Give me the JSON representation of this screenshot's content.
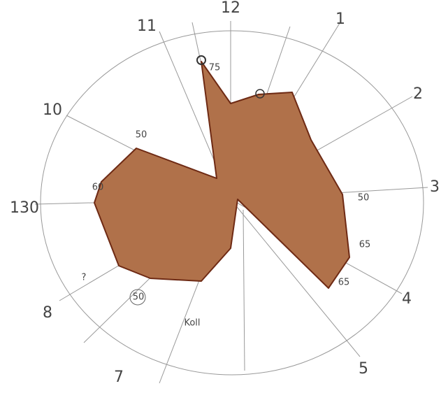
{
  "axis_labels": [
    "12",
    "11",
    "1",
    "2",
    "3",
    "4",
    "5",
    "7",
    "8",
    "10",
    "130"
  ],
  "value_labels": [
    "75",
    "50",
    "60",
    "50",
    "65",
    "65",
    "50",
    "Koll",
    "?"
  ]
}
